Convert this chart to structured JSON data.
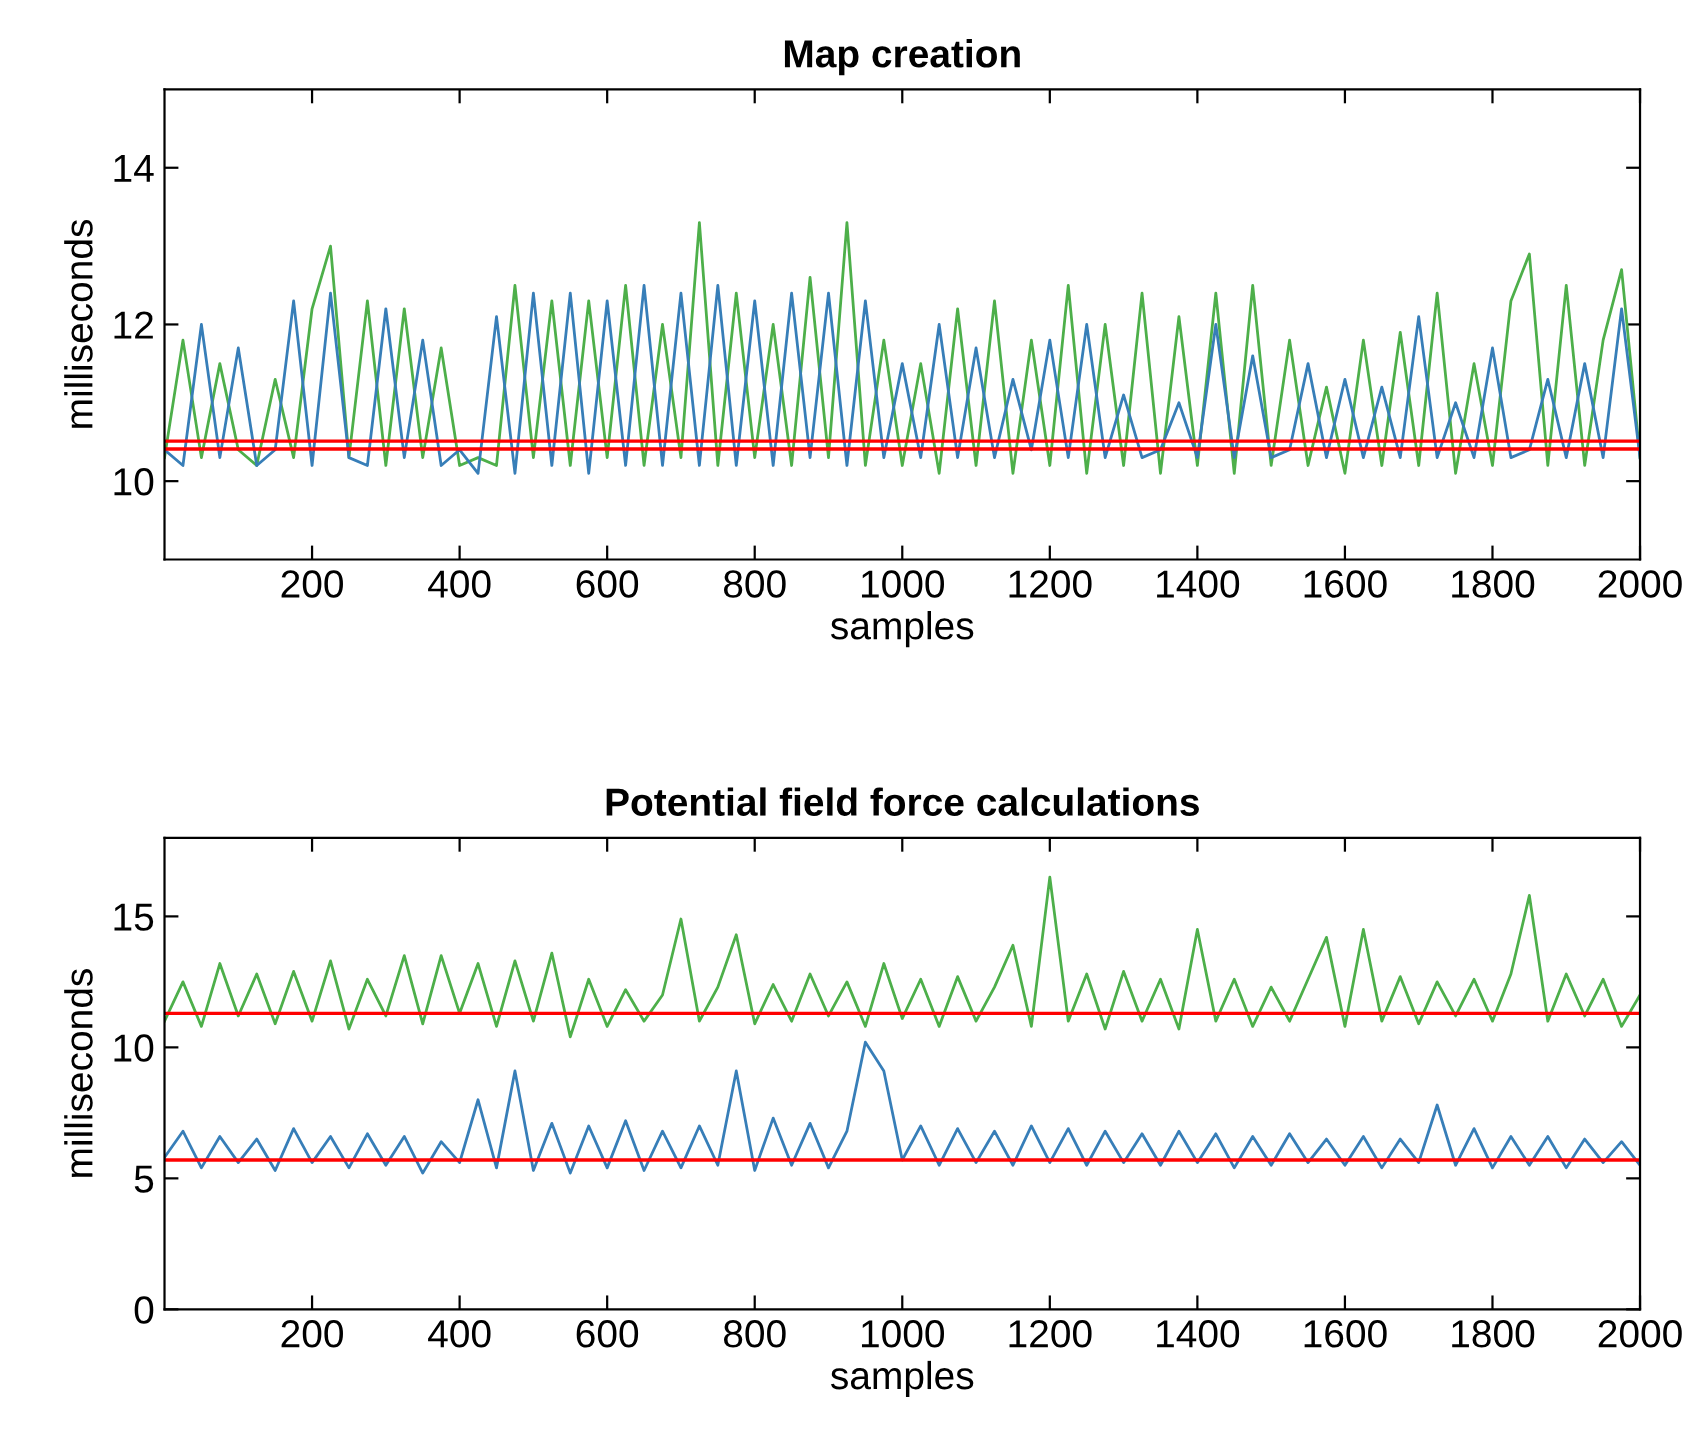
{
  "chart_data": [
    {
      "type": "line",
      "title": "Map creation",
      "xlabel": "samples",
      "ylabel": "milliseconds",
      "x": [
        0,
        25,
        50,
        75,
        100,
        125,
        150,
        175,
        200,
        225,
        250,
        275,
        300,
        325,
        350,
        375,
        400,
        425,
        450,
        475,
        500,
        525,
        550,
        575,
        600,
        625,
        650,
        675,
        700,
        725,
        750,
        775,
        800,
        825,
        850,
        875,
        900,
        925,
        950,
        975,
        1000,
        1025,
        1050,
        1075,
        1100,
        1125,
        1150,
        1175,
        1200,
        1225,
        1250,
        1275,
        1300,
        1325,
        1350,
        1375,
        1400,
        1425,
        1450,
        1475,
        1500,
        1525,
        1550,
        1575,
        1600,
        1625,
        1650,
        1675,
        1700,
        1725,
        1750,
        1775,
        1800,
        1825,
        1850,
        1875,
        1900,
        1925,
        1950,
        1975,
        2000
      ],
      "series": [
        {
          "color": "#4daf4a",
          "values": [
            10.3,
            11.8,
            10.3,
            11.5,
            10.4,
            10.2,
            11.3,
            10.3,
            12.2,
            13.0,
            10.3,
            12.3,
            10.2,
            12.2,
            10.3,
            11.7,
            10.2,
            10.3,
            10.2,
            12.5,
            10.3,
            12.3,
            10.2,
            12.3,
            10.3,
            12.5,
            10.2,
            12.0,
            10.3,
            13.3,
            10.2,
            12.4,
            10.3,
            12.0,
            10.2,
            12.6,
            10.3,
            13.3,
            10.2,
            11.8,
            10.2,
            11.5,
            10.1,
            12.2,
            10.2,
            12.3,
            10.1,
            11.8,
            10.2,
            12.5,
            10.1,
            12.0,
            10.2,
            12.4,
            10.1,
            12.1,
            10.2,
            12.4,
            10.1,
            12.5,
            10.2,
            11.8,
            10.2,
            11.2,
            10.1,
            11.8,
            10.2,
            11.9,
            10.2,
            12.4,
            10.1,
            11.5,
            10.2,
            12.3,
            12.9,
            10.2,
            12.5,
            10.2,
            11.8,
            12.7,
            10.3
          ]
        },
        {
          "color": "#377eb8",
          "values": [
            10.4,
            10.2,
            12.0,
            10.3,
            11.7,
            10.2,
            10.4,
            12.3,
            10.2,
            12.4,
            10.3,
            10.2,
            12.2,
            10.3,
            11.8,
            10.2,
            10.4,
            10.1,
            12.1,
            10.1,
            12.4,
            10.2,
            12.4,
            10.1,
            12.3,
            10.2,
            12.5,
            10.2,
            12.4,
            10.2,
            12.5,
            10.2,
            12.3,
            10.2,
            12.4,
            10.3,
            12.4,
            10.2,
            12.3,
            10.3,
            11.5,
            10.3,
            12.0,
            10.3,
            11.7,
            10.3,
            11.3,
            10.4,
            11.8,
            10.3,
            12.0,
            10.3,
            11.1,
            10.3,
            10.4,
            11.0,
            10.3,
            12.0,
            10.3,
            11.6,
            10.3,
            10.4,
            11.5,
            10.3,
            11.3,
            10.3,
            11.2,
            10.3,
            12.1,
            10.3,
            11.0,
            10.3,
            11.7,
            10.3,
            10.4,
            11.3,
            10.3,
            11.5,
            10.3,
            12.2,
            10.3
          ]
        }
      ],
      "ref_lines": [
        {
          "axis": "y",
          "value": 10.51,
          "color": "#ff0000"
        },
        {
          "axis": "y",
          "value": 10.41,
          "color": "#ff0000"
        }
      ],
      "xlim": [
        0,
        2000
      ],
      "xticks": [
        200,
        400,
        600,
        800,
        1000,
        1200,
        1400,
        1600,
        1800,
        2000
      ],
      "ylim": [
        9,
        15
      ],
      "yticks": [
        10,
        12,
        14
      ],
      "grid": false
    },
    {
      "type": "line",
      "title": "Potential field force calculations",
      "xlabel": "samples",
      "ylabel": "milliseconds",
      "x": [
        0,
        25,
        50,
        75,
        100,
        125,
        150,
        175,
        200,
        225,
        250,
        275,
        300,
        325,
        350,
        375,
        400,
        425,
        450,
        475,
        500,
        525,
        550,
        575,
        600,
        625,
        650,
        675,
        700,
        725,
        750,
        775,
        800,
        825,
        850,
        875,
        900,
        925,
        950,
        975,
        1000,
        1025,
        1050,
        1075,
        1100,
        1125,
        1150,
        1175,
        1200,
        1225,
        1250,
        1275,
        1300,
        1325,
        1350,
        1375,
        1400,
        1425,
        1450,
        1475,
        1500,
        1525,
        1550,
        1575,
        1600,
        1625,
        1650,
        1675,
        1700,
        1725,
        1750,
        1775,
        1800,
        1825,
        1850,
        1875,
        1900,
        1925,
        1950,
        1975,
        2000
      ],
      "series": [
        {
          "color": "#4daf4a",
          "values": [
            11.0,
            12.5,
            10.8,
            13.2,
            11.2,
            12.8,
            10.9,
            12.9,
            11.0,
            13.3,
            10.7,
            12.6,
            11.2,
            13.5,
            10.9,
            13.5,
            11.3,
            13.2,
            10.8,
            13.3,
            11.0,
            13.6,
            10.4,
            12.6,
            10.8,
            12.2,
            11.0,
            12.0,
            14.9,
            11.0,
            12.3,
            14.3,
            10.9,
            12.4,
            11.0,
            12.8,
            11.2,
            12.5,
            10.8,
            13.2,
            11.1,
            12.6,
            10.8,
            12.7,
            11.0,
            12.3,
            13.9,
            10.8,
            16.5,
            11.0,
            12.8,
            10.7,
            12.9,
            11.0,
            12.6,
            10.7,
            14.5,
            11.0,
            12.6,
            10.8,
            12.3,
            11.0,
            12.6,
            14.2,
            10.8,
            14.5,
            11.0,
            12.7,
            10.9,
            12.5,
            11.2,
            12.6,
            11.0,
            12.8,
            15.8,
            11.0,
            12.8,
            11.2,
            12.6,
            10.8,
            12.0
          ]
        },
        {
          "color": "#377eb8",
          "values": [
            5.8,
            6.8,
            5.4,
            6.6,
            5.6,
            6.5,
            5.3,
            6.9,
            5.6,
            6.6,
            5.4,
            6.7,
            5.5,
            6.6,
            5.2,
            6.4,
            5.6,
            8.0,
            5.4,
            9.1,
            5.3,
            7.1,
            5.2,
            7.0,
            5.4,
            7.2,
            5.3,
            6.8,
            5.4,
            7.0,
            5.5,
            9.1,
            5.3,
            7.3,
            5.5,
            7.1,
            5.4,
            6.8,
            10.2,
            9.1,
            5.7,
            7.0,
            5.5,
            6.9,
            5.6,
            6.8,
            5.5,
            7.0,
            5.6,
            6.9,
            5.5,
            6.8,
            5.6,
            6.7,
            5.5,
            6.8,
            5.6,
            6.7,
            5.4,
            6.6,
            5.5,
            6.7,
            5.6,
            6.5,
            5.5,
            6.6,
            5.4,
            6.5,
            5.6,
            7.8,
            5.5,
            6.9,
            5.4,
            6.6,
            5.5,
            6.6,
            5.4,
            6.5,
            5.6,
            6.4,
            5.5
          ]
        }
      ],
      "ref_lines": [
        {
          "axis": "y",
          "value": 11.3,
          "color": "#ff0000"
        },
        {
          "axis": "y",
          "value": 5.7,
          "color": "#ff0000"
        }
      ],
      "xlim": [
        0,
        2000
      ],
      "xticks": [
        200,
        400,
        600,
        800,
        1000,
        1200,
        1400,
        1600,
        1800,
        2000
      ],
      "ylim": [
        0,
        18
      ],
      "yticks": [
        0,
        5,
        10,
        15
      ],
      "grid": false
    }
  ]
}
